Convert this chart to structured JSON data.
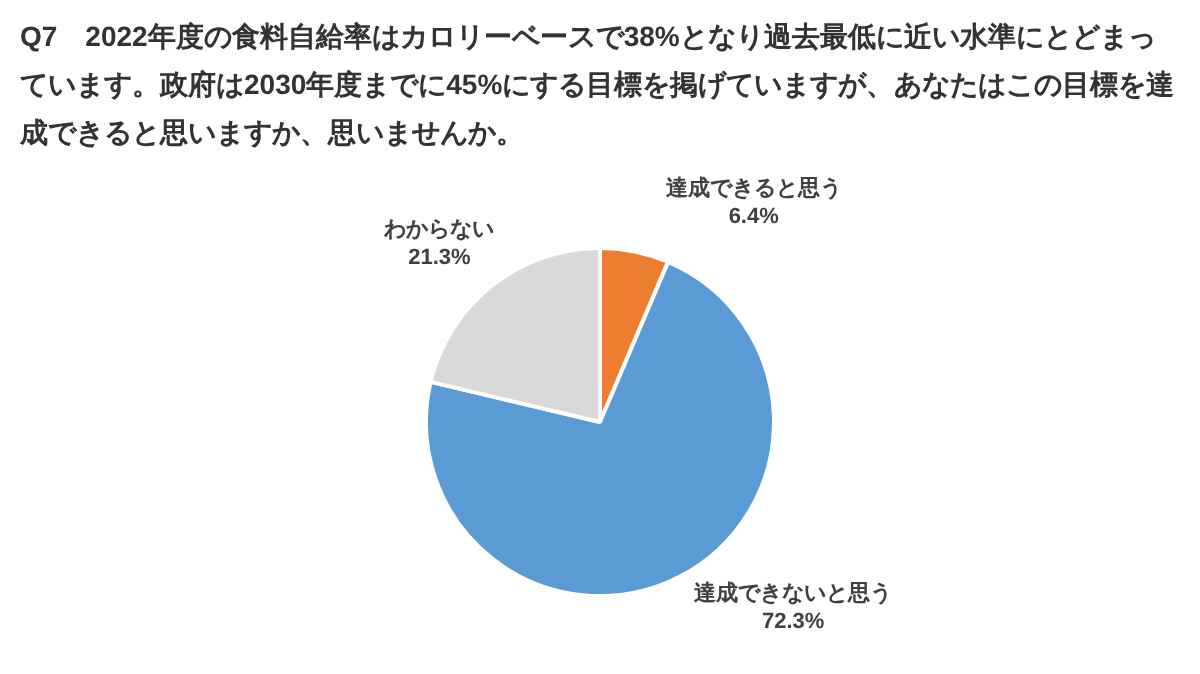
{
  "chart_data": {
    "type": "pie",
    "title": "Q7　2022年度の食料自給率はカロリーベースで38%となり過去最低に近い水準にとどまっています。政府は2030年度までに45%にする目標を掲げていますが、あなたはこの目標を達成できると思いますか、思いませんか。",
    "categories": [
      "達成できると思う",
      "達成できないと思う",
      "わからない"
    ],
    "values": [
      6.4,
      72.3,
      21.3
    ],
    "value_labels": [
      "6.4%",
      "72.3%",
      "21.3%"
    ],
    "colors": [
      "#ed7d31",
      "#5b9bd5",
      "#d9d9d9"
    ]
  }
}
